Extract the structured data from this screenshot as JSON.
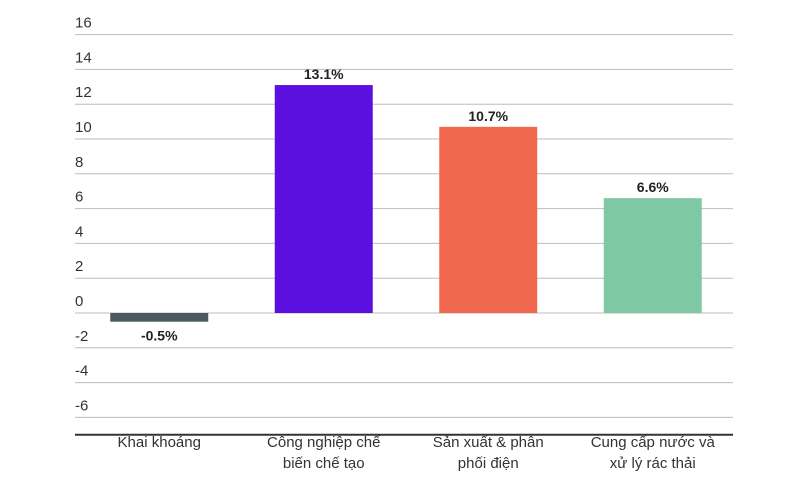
{
  "chart_data": {
    "type": "bar",
    "categories": [
      [
        "Khai khoáng"
      ],
      [
        "Công nghiệp chế",
        "biến chế tạo"
      ],
      [
        "Sản xuất & phân",
        "phối điện"
      ],
      [
        "Cung cấp nước và",
        "xử lý rác thải"
      ]
    ],
    "values": [
      -0.5,
      13.1,
      10.7,
      6.6
    ],
    "data_labels": [
      "-0.5%",
      "13.1%",
      "10.7%",
      "6.6%"
    ],
    "colors": [
      "#4a5a61",
      "#5b10e0",
      "#f0694f",
      "#7ec8a4"
    ],
    "yticks": [
      16,
      14,
      12,
      10,
      8,
      6,
      4,
      2,
      0,
      -2,
      -4,
      -6
    ],
    "ylim": [
      -7,
      16
    ],
    "grid": true,
    "title": "",
    "xlabel": "",
    "ylabel": ""
  }
}
